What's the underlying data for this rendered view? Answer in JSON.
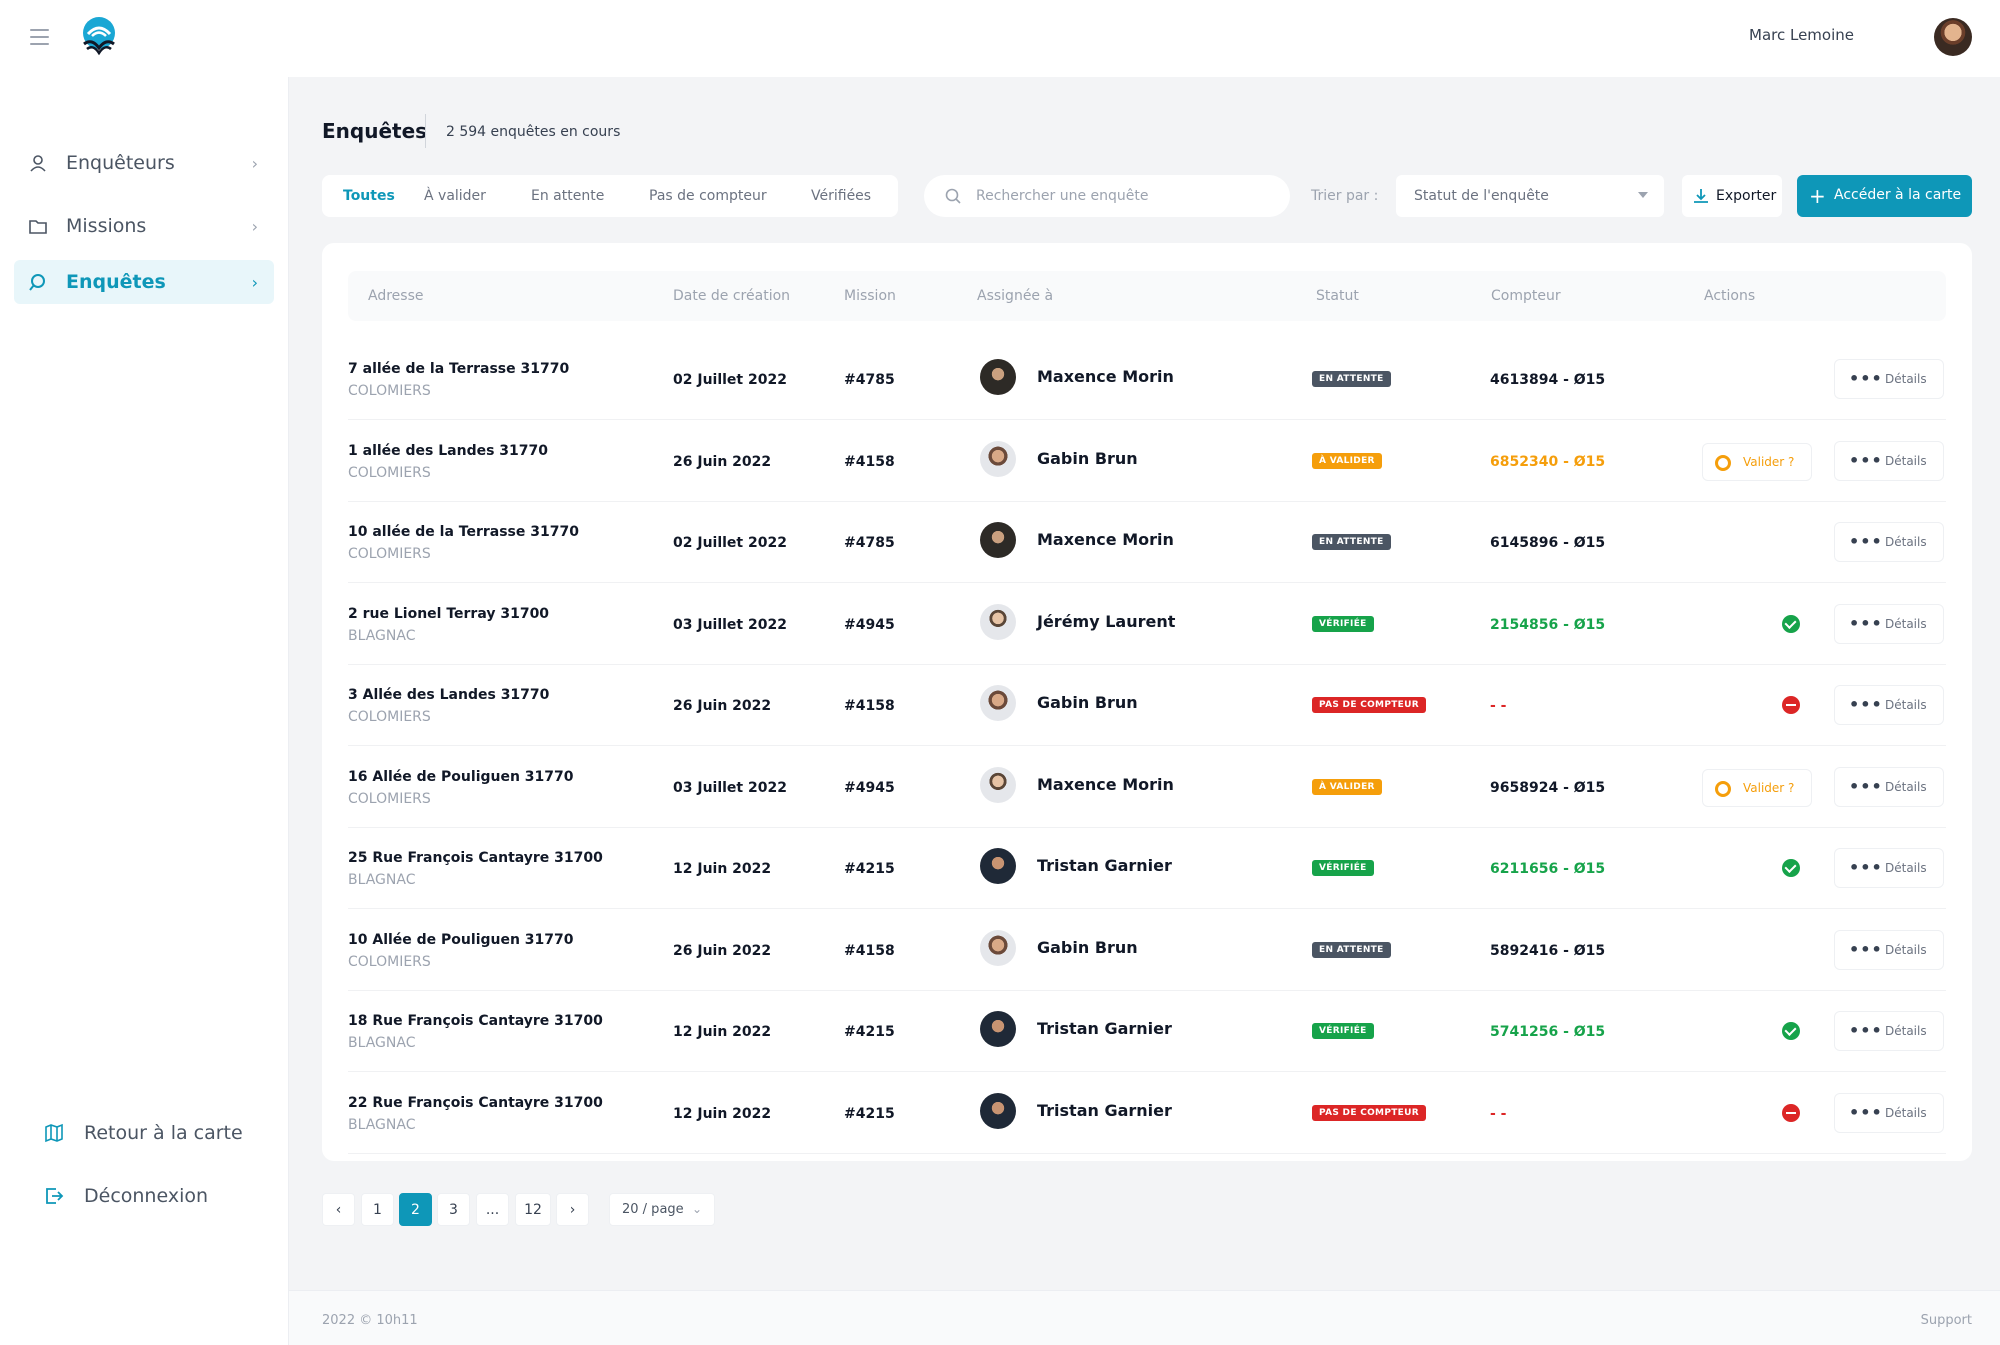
{
  "user": {
    "name": "Marc Lemoine"
  },
  "sidebar": {
    "items": [
      {
        "label": "Enquêteurs",
        "icon": "user-icon",
        "active": false
      },
      {
        "label": "Missions",
        "icon": "folder-icon",
        "active": false
      },
      {
        "label": "Enquêtes",
        "icon": "search-icon",
        "active": true
      }
    ],
    "bottom": [
      {
        "label": "Retour à la carte",
        "icon": "map-icon"
      },
      {
        "label": "Déconnexion",
        "icon": "logout-icon"
      }
    ]
  },
  "page": {
    "title": "Enquêtes",
    "count": "2 594 enquêtes en cours"
  },
  "filters": {
    "tabs": [
      {
        "label": "Toutes",
        "active": true
      },
      {
        "label": "À valider",
        "active": false
      },
      {
        "label": "En attente",
        "active": false
      },
      {
        "label": "Pas de compteur",
        "active": false
      },
      {
        "label": "Vérifiées",
        "active": false
      }
    ],
    "search_placeholder": "Rechercher une enquête",
    "sort_label": "Trier par :",
    "sort_value": "Statut de l'enquête",
    "export_label": "Exporter",
    "map_label": "Accéder à la carte"
  },
  "table": {
    "headers": [
      "Adresse",
      "Date de création",
      "Mission",
      "Assignée à",
      "Statut",
      "Compteur",
      "Actions"
    ],
    "details_label": "Détails",
    "valider_label": "Valider ?",
    "rows": [
      {
        "address": "7 allée de la Terrasse 31770",
        "city": "COLOMIERS",
        "date": "02 Juillet 2022",
        "mission": "#4785",
        "assignee": "Maxence Morin",
        "avatar": "a",
        "status": "EN ATTENTE",
        "status_color": "#4b5563",
        "meter": "4613894 - Ø15",
        "meter_color": "#111827",
        "action": ""
      },
      {
        "address": "1 allée des Landes 31770",
        "city": "COLOMIERS",
        "date": "26 Juin 2022",
        "mission": "#4158",
        "assignee": "Gabin Brun",
        "avatar": "b",
        "status": "À VALIDER",
        "status_color": "#f59e0b",
        "meter": "6852340 - Ø15",
        "meter_color": "#f59e0b",
        "action": "valider"
      },
      {
        "address": "10 allée de la Terrasse 31770",
        "city": "COLOMIERS",
        "date": "02 Juillet 2022",
        "mission": "#4785",
        "assignee": "Maxence Morin",
        "avatar": "a",
        "status": "EN ATTENTE",
        "status_color": "#4b5563",
        "meter": "6145896 - Ø15",
        "meter_color": "#111827",
        "action": ""
      },
      {
        "address": "2 rue Lionel Terray 31700",
        "city": "BLAGNAC",
        "date": "03 Juillet 2022",
        "mission": "#4945",
        "assignee": "Jérémy Laurent",
        "avatar": "c",
        "status": "VÉRIFIÉE",
        "status_color": "#16a34a",
        "meter": "2154856 - Ø15",
        "meter_color": "#16a34a",
        "action": "ok"
      },
      {
        "address": "3 Allée des Landes 31770",
        "city": "COLOMIERS",
        "date": "26 Juin 2022",
        "mission": "#4158",
        "assignee": "Gabin Brun",
        "avatar": "b",
        "status": "PAS DE COMPTEUR",
        "status_color": "#dc2626",
        "meter": "- -",
        "meter_color": "#dc2626",
        "action": "no"
      },
      {
        "address": "16 Allée de Pouliguen 31770",
        "city": "COLOMIERS",
        "date": "03 Juillet 2022",
        "mission": "#4945",
        "assignee": "Maxence Morin",
        "avatar": "c",
        "status": "À VALIDER",
        "status_color": "#f59e0b",
        "meter": "9658924 - Ø15",
        "meter_color": "#111827",
        "action": "valider"
      },
      {
        "address": "25 Rue François Cantayre 31700",
        "city": "BLAGNAC",
        "date": "12 Juin 2022",
        "mission": "#4215",
        "assignee": "Tristan Garnier",
        "avatar": "d",
        "status": "VÉRIFIÉE",
        "status_color": "#16a34a",
        "meter": "6211656 - Ø15",
        "meter_color": "#16a34a",
        "action": "ok"
      },
      {
        "address": "10 Allée de Pouliguen 31770",
        "city": "COLOMIERS",
        "date": "26 Juin 2022",
        "mission": "#4158",
        "assignee": "Gabin Brun",
        "avatar": "b",
        "status": "EN ATTENTE",
        "status_color": "#4b5563",
        "meter": "5892416 - Ø15",
        "meter_color": "#111827",
        "action": ""
      },
      {
        "address": "18 Rue François Cantayre 31700",
        "city": "BLAGNAC",
        "date": "12 Juin 2022",
        "mission": "#4215",
        "assignee": "Tristan Garnier",
        "avatar": "d",
        "status": "VÉRIFIÉE",
        "status_color": "#16a34a",
        "meter": "5741256 - Ø15",
        "meter_color": "#16a34a",
        "action": "ok"
      },
      {
        "address": "22 Rue François Cantayre 31700",
        "city": "BLAGNAC",
        "date": "12 Juin 2022",
        "mission": "#4215",
        "assignee": "Tristan Garnier",
        "avatar": "d",
        "status": "PAS DE COMPTEUR",
        "status_color": "#dc2626",
        "meter": "- -",
        "meter_color": "#dc2626",
        "action": "no"
      }
    ]
  },
  "pagination": {
    "prev": "‹",
    "next": "›",
    "pages": [
      "1",
      "2",
      "3",
      "...",
      "12"
    ],
    "current": "2",
    "page_size": "20 / page"
  },
  "footer": {
    "copyright": "2022 © 10h11",
    "support": "Support"
  },
  "colors": {
    "accent": "#0e97b8"
  }
}
